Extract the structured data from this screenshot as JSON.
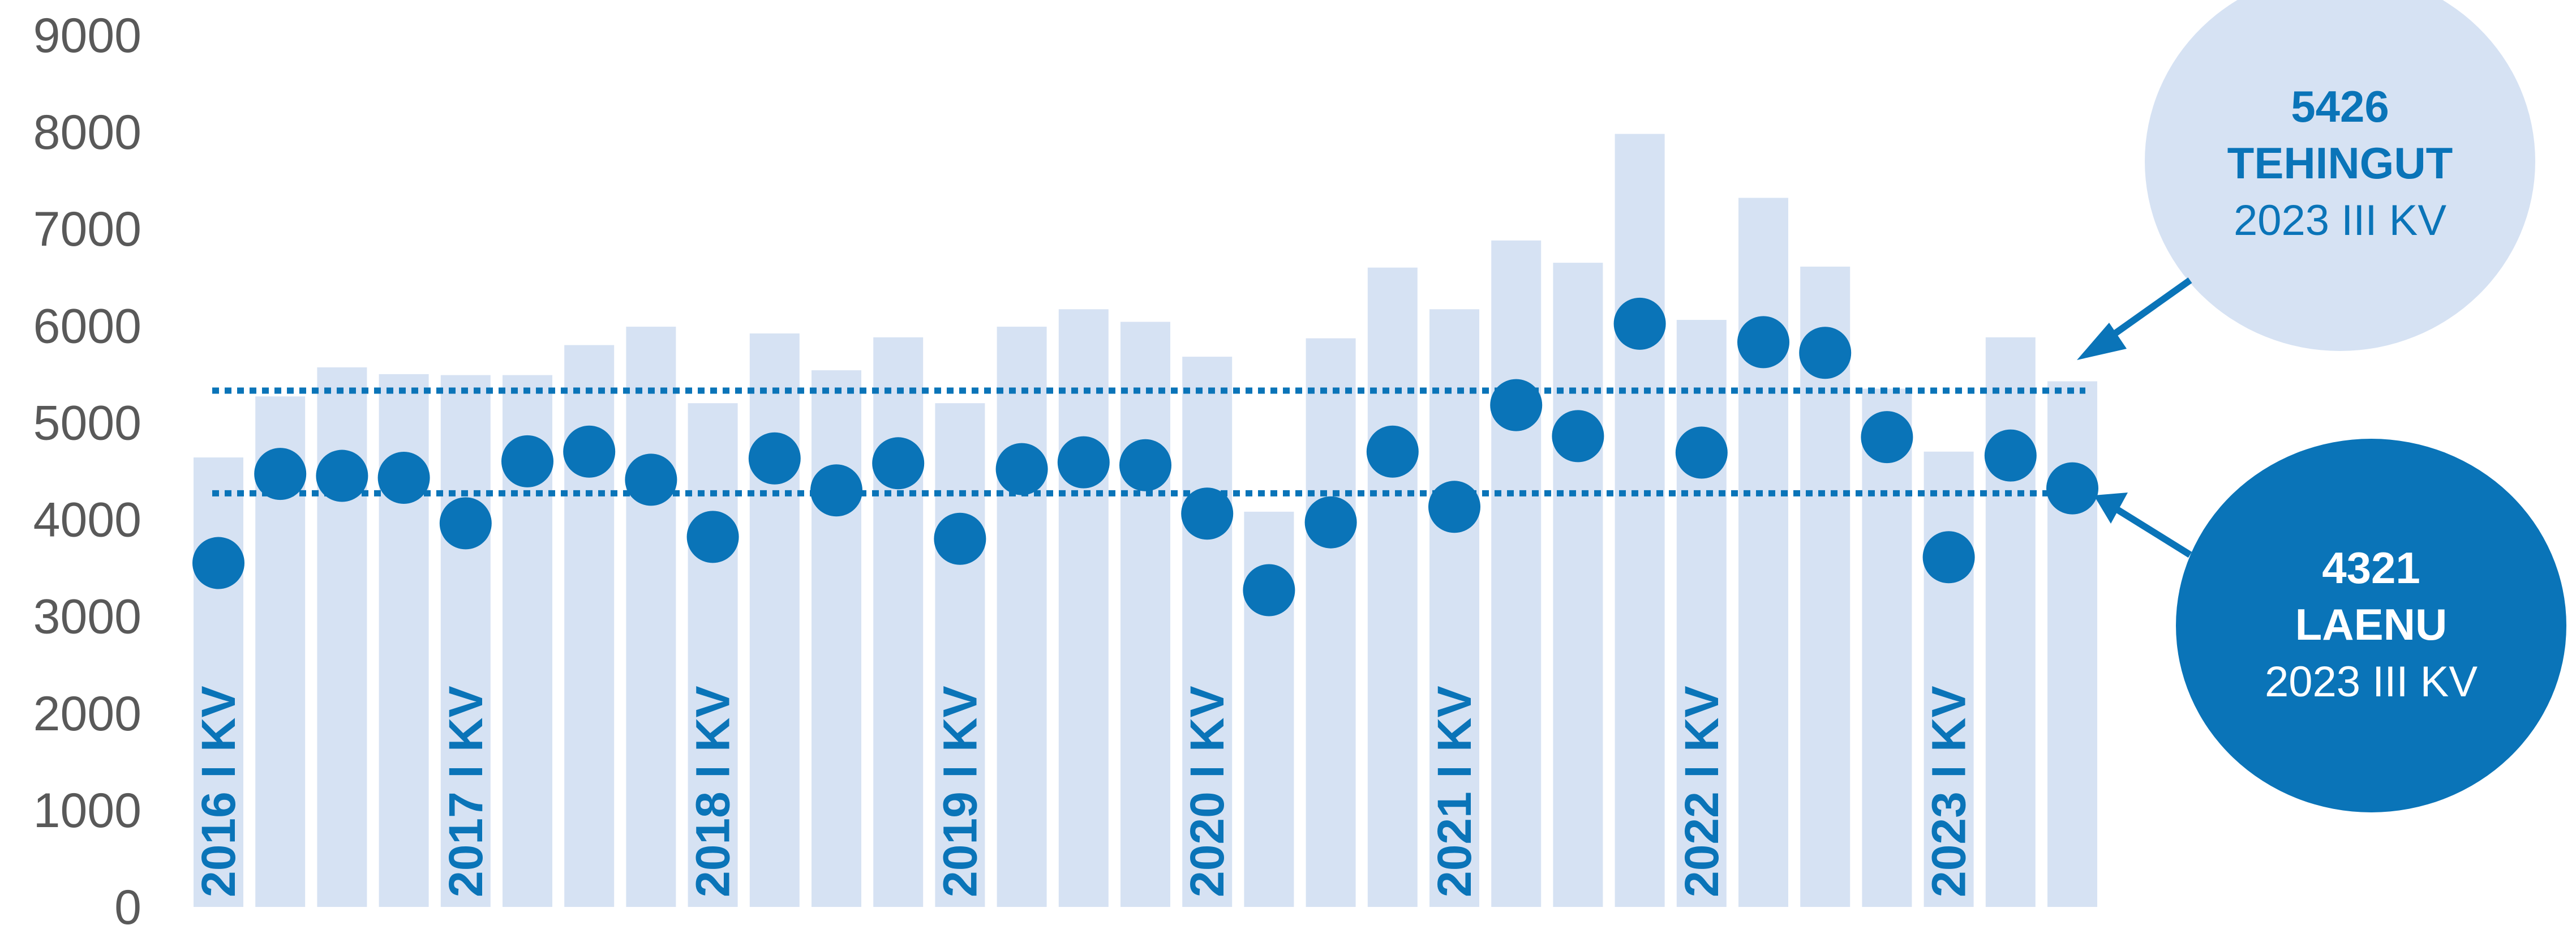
{
  "chart_data": {
    "type": "bar",
    "ylim": [
      0,
      9000
    ],
    "yticks": [
      "0",
      "1000",
      "2000",
      "3000",
      "4000",
      "5000",
      "6000",
      "7000",
      "8000",
      "9000"
    ],
    "categories": [
      "2016 I KV",
      "",
      "",
      "",
      "2017 I KV",
      "",
      "",
      "",
      "2018 I KV",
      "",
      "",
      "",
      "2019 I KV",
      "",
      "",
      "",
      "2020 I KV",
      "",
      "",
      "",
      "2021 I KV",
      "",
      "",
      "",
      "2022 I KV",
      "",
      "",
      "",
      "2023 I KV",
      "",
      ""
    ],
    "series": [
      {
        "type": "bar",
        "color": "#d6e2f3",
        "values": [
          4640,
          5270,
          5570,
          5500,
          5490,
          5490,
          5800,
          5990,
          5200,
          5920,
          5540,
          5880,
          5200,
          5990,
          6170,
          6040,
          5680,
          4080,
          5870,
          6600,
          6170,
          6880,
          6650,
          7980,
          6060,
          7320,
          6610,
          5350,
          4700,
          5880,
          5426
        ]
      },
      {
        "type": "scatter",
        "color": "#0a74b8",
        "values": [
          3550,
          4470,
          4450,
          4430,
          3960,
          4600,
          4700,
          4410,
          3820,
          4630,
          4300,
          4580,
          3800,
          4520,
          4590,
          4560,
          4060,
          3270,
          3970,
          4700,
          4130,
          5180,
          4860,
          6020,
          4690,
          5830,
          5720,
          4850,
          3610,
          4660,
          4321
        ]
      }
    ],
    "reference_lines": [
      {
        "name": "tehingud-average",
        "value": 5330,
        "color": "#0a74b8",
        "style": "dotted"
      },
      {
        "name": "laenud-average",
        "value": 4270,
        "color": "#0a74b8",
        "style": "dotted"
      }
    ],
    "callouts": [
      {
        "name": "tehingud",
        "lines": [
          "5426",
          "TEHINGUT",
          "2023 III KV"
        ],
        "fill": "#d6e2f3",
        "text_color": "#0a74b8",
        "points_to_value": 5426
      },
      {
        "name": "laenud",
        "lines": [
          "4321",
          "LAENU",
          "2023 III KV"
        ],
        "fill": "#0a74b8",
        "text_color": "#ffffff",
        "points_to_value": 4321
      }
    ]
  }
}
